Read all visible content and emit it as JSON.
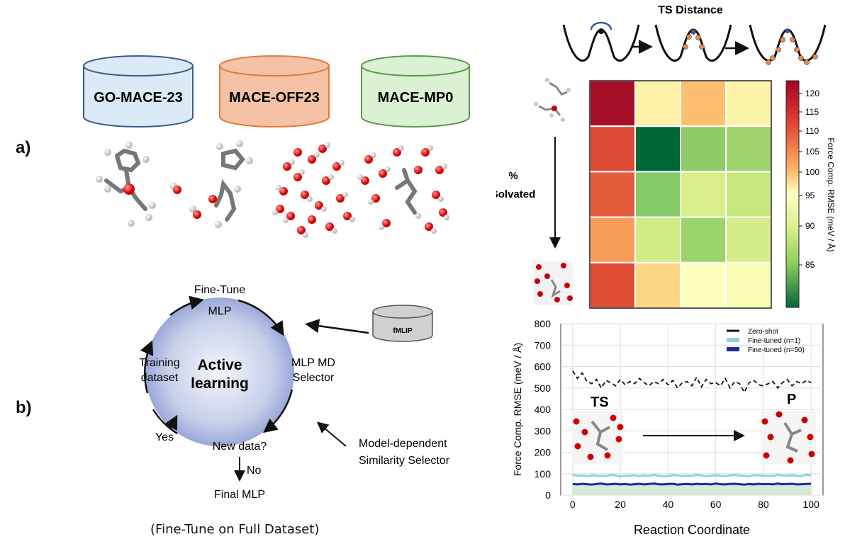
{
  "panel_labels": {
    "a": "a)",
    "b": "b)"
  },
  "databases": [
    {
      "label": "GO-MACE-23",
      "fill": "#dce9f6",
      "stroke": "#3a5f8a"
    },
    {
      "label": "MACE-OFF23",
      "fill": "#f5c2a5",
      "stroke": "#e07b3d"
    },
    {
      "label": "MACE-MP0",
      "fill": "#dbf2d2",
      "stroke": "#5a9a4a"
    }
  ],
  "active_learning": {
    "top_label": "Fine-Tune",
    "center_line1": "Active",
    "center_line2": "learning",
    "mlp": "MLP",
    "mlp_md_line1": "MLP MD",
    "mlp_md_line2": "Selector",
    "training_line1": "Training",
    "training_line2": "dataset",
    "new_data": "New data?",
    "yes": "Yes",
    "no": "No",
    "final": "Final MLP",
    "fmlip": "fMLIP",
    "similarity_line1": "Model-dependent",
    "similarity_line2": "Similarity Selector",
    "caption": "(Fine-Tune on Full Dataset)"
  },
  "ts_distance": {
    "title": "TS Distance"
  },
  "heatmap": {
    "ylabel_line1": "%",
    "ylabel_line2": "Solvated",
    "colorbar_label": "Force Comp. RMSE (meV / Å)",
    "colorbar_ticks": [
      "120",
      "115",
      "110",
      "105",
      "100",
      "95",
      "90",
      "85"
    ],
    "colors": [
      [
        "#a50f27",
        "#fdf2a8",
        "#fdbf6f",
        "#fdf3a9"
      ],
      [
        "#de4a35",
        "#006837",
        "#8fcb68",
        "#9fd36b"
      ],
      [
        "#e25c3b",
        "#84ca66",
        "#d7ee8a",
        "#c6e87d"
      ],
      [
        "#f89d59",
        "#d1ec85",
        "#9bd46a",
        "#d5ed88"
      ],
      [
        "#e14d35",
        "#fcd683",
        "#fefebd",
        "#f8fcb4"
      ]
    ]
  },
  "chart_data": {
    "type": "line",
    "xlabel": "Reaction Coordinate",
    "ylabel": "Force Comp. RMSE (meV / Å)",
    "xlim": [
      -5,
      105
    ],
    "ylim": [
      0,
      800
    ],
    "xticks": [
      "0",
      "20",
      "40",
      "60",
      "80",
      "100"
    ],
    "yticks": [
      "0",
      "100",
      "200",
      "300",
      "400",
      "500",
      "600",
      "700",
      "800"
    ],
    "grid": true,
    "legend_position": "top-right",
    "annotations": [
      "TS",
      "P"
    ],
    "x": [
      0,
      2,
      4,
      6,
      8,
      10,
      12,
      14,
      16,
      18,
      20,
      22,
      24,
      26,
      28,
      30,
      32,
      34,
      36,
      38,
      40,
      42,
      44,
      46,
      48,
      50,
      52,
      54,
      56,
      58,
      60,
      62,
      64,
      66,
      68,
      70,
      72,
      74,
      76,
      78,
      80,
      82,
      84,
      86,
      88,
      90,
      92,
      94,
      96,
      98,
      100
    ],
    "series": [
      {
        "name": "Zero-shot",
        "color": "#111111",
        "dash": true,
        "values": [
          580,
          545,
          570,
          530,
          520,
          540,
          500,
          535,
          525,
          510,
          540,
          515,
          530,
          520,
          545,
          525,
          510,
          530,
          520,
          540,
          515,
          535,
          500,
          525,
          530,
          510,
          550,
          505,
          540,
          520,
          525,
          510,
          545,
          500,
          530,
          520,
          480,
          525,
          535,
          515,
          510,
          520,
          530,
          500,
          525,
          540,
          510,
          530,
          520,
          535,
          525
        ]
      },
      {
        "name": "Fine-tuned (n=1)",
        "color": "#8ed3de",
        "values": [
          95,
          90,
          92,
          88,
          93,
          91,
          90,
          89,
          94,
          92,
          88,
          90,
          91,
          93,
          89,
          92,
          90,
          94,
          91,
          88,
          90,
          93,
          92,
          89,
          91,
          90,
          94,
          92,
          88,
          91,
          93,
          90,
          89,
          92,
          94,
          91,
          90,
          88,
          93,
          92,
          91,
          89,
          90,
          94,
          92,
          91,
          93,
          90,
          89,
          95,
          92
        ]
      },
      {
        "name": "Fine-tuned (n=50)",
        "color": "#1a2a9c",
        "values": [
          52,
          50,
          53,
          51,
          49,
          52,
          54,
          50,
          51,
          53,
          50,
          52,
          49,
          51,
          53,
          50,
          52,
          54,
          51,
          50,
          52,
          53,
          49,
          51,
          52,
          50,
          53,
          51,
          52,
          50,
          54,
          51,
          50,
          52,
          53,
          51,
          49,
          52,
          50,
          53,
          51,
          52,
          50,
          54,
          51,
          52,
          53,
          50,
          51,
          52,
          53
        ]
      }
    ]
  }
}
